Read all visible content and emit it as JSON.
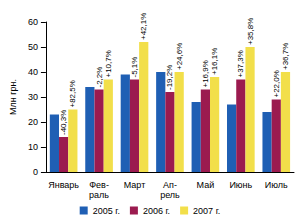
{
  "chart_data": {
    "type": "bar",
    "y_label": "Млн грн.",
    "categories": [
      "Январь",
      "Фев-\nраль",
      "Март",
      "Ап-\nрель",
      "Май",
      "Июнь",
      "Июль"
    ],
    "series": [
      {
        "name": "2005 г.",
        "color": "#1f5fb4",
        "values": [
          23,
          34,
          39,
          40,
          28,
          27,
          24
        ]
      },
      {
        "name": "2006 г.",
        "color": "#9b1b4f",
        "values": [
          14,
          33,
          37,
          32,
          33,
          37,
          29
        ],
        "change_labels": [
          "-40,3%",
          "-2,2%",
          "-5,1%",
          "-19,2%",
          "+16,9%",
          "+37,3%",
          "+22,0%"
        ]
      },
      {
        "name": "2007 г.",
        "color": "#f2df4a",
        "values": [
          25,
          37,
          52,
          40,
          38,
          50,
          40
        ],
        "change_labels": [
          "+82,5%",
          "+10,7%",
          "+42,1%",
          "+24,6%",
          "+16,1%",
          "+35,8%",
          "+36,7%"
        ]
      }
    ],
    "ylim": [
      0,
      60
    ],
    "yticks": [
      0,
      10,
      20,
      30,
      40,
      50,
      60
    ],
    "grid": false,
    "legend": "bottom"
  }
}
